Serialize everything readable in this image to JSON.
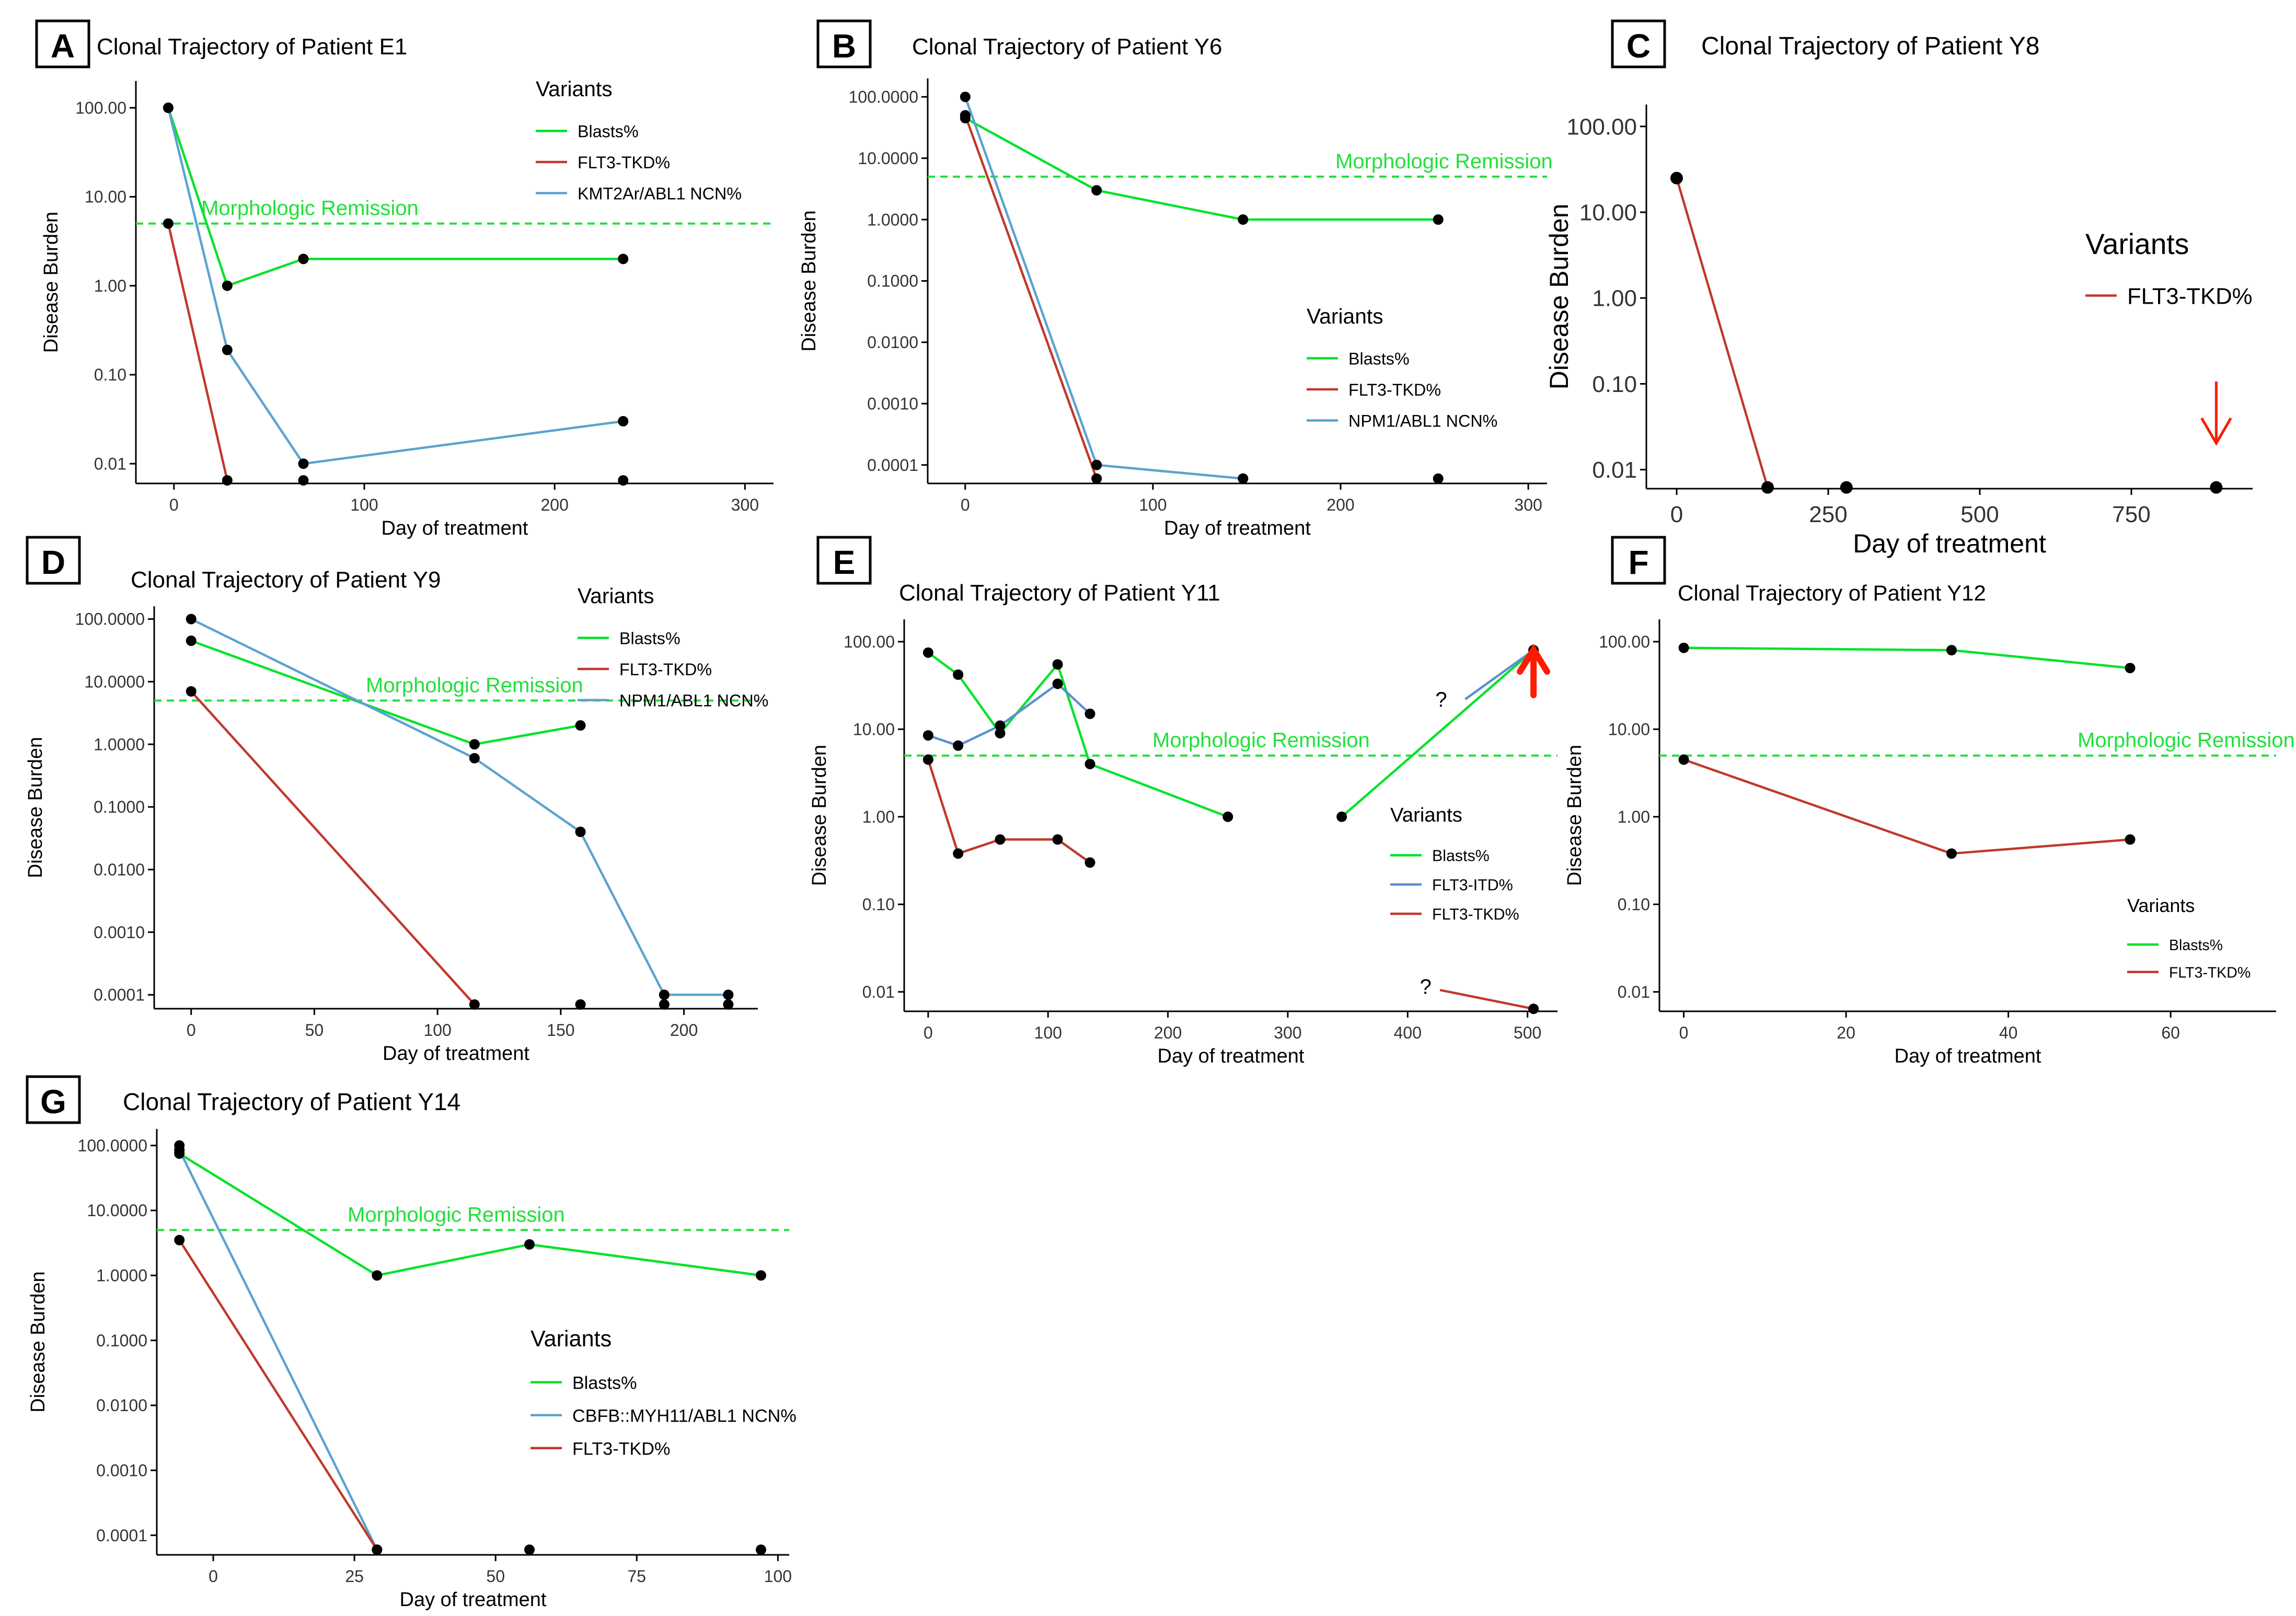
{
  "figure": {
    "x_axis_label": "Day of treatment",
    "y_axis_label": "Disease Burden",
    "remission_label": "Morphologic Remission",
    "legend_title": "Variants",
    "unknown_marker": "?"
  },
  "colors": {
    "blasts": "#00e22a",
    "flt3_tkd": "#c0392b",
    "ncn": "#5ba3cf",
    "flt3_itd": "#5b8fd0",
    "remission": "#22e03a",
    "arrow": "#ff1a00",
    "point": "#000000"
  },
  "chart_data": [
    {
      "panel": "A",
      "type": "line",
      "title": "Clonal Trajectory of Patient E1",
      "xlabel": "Day of treatment",
      "ylabel": "Disease Burden",
      "xlim": [
        -20,
        315
      ],
      "x_ticks": [
        0,
        100,
        200,
        300
      ],
      "y_ticks": [
        100,
        10,
        1,
        0.1,
        0.01
      ],
      "y_tick_labels": [
        "100.00",
        "10.00",
        "1.00",
        "0.10",
        "0.01"
      ],
      "ylim": [
        0.006,
        200
      ],
      "remission_threshold": 5,
      "legend_title": "Variants",
      "series": [
        {
          "name": "Blasts%",
          "color_key": "blasts",
          "x": [
            -3,
            28,
            68,
            236
          ],
          "y": [
            100,
            1,
            2,
            2
          ]
        },
        {
          "name": "FLT3-TKD%",
          "color_key": "flt3_tkd",
          "x": [
            -3,
            28
          ],
          "y": [
            5,
            0.0065
          ]
        },
        {
          "name": "KMT2Ar/ABL1 NCN%",
          "color_key": "ncn",
          "x": [
            -3,
            28,
            68,
            236
          ],
          "y": [
            100,
            0.19,
            0.01,
            0.03
          ]
        }
      ],
      "extra_points": [
        {
          "x": 68,
          "y": 0.0065
        },
        {
          "x": 236,
          "y": 0.0065
        }
      ]
    },
    {
      "panel": "B",
      "type": "line",
      "title": "Clonal Trajectory of Patient Y6",
      "xlabel": "Day of treatment",
      "ylabel": "Disease Burden",
      "xlim": [
        -20,
        310
      ],
      "x_ticks": [
        0,
        100,
        200,
        300
      ],
      "y_ticks": [
        100,
        10,
        1,
        0.1,
        0.01,
        0.001,
        0.0001
      ],
      "y_tick_labels": [
        "100.0000",
        "10.0000",
        "1.0000",
        "0.1000",
        "0.0100",
        "0.0010",
        "0.0001"
      ],
      "ylim": [
        5e-05,
        200
      ],
      "remission_threshold": 5,
      "legend_title": "Variants",
      "series": [
        {
          "name": "Blasts%",
          "color_key": "blasts",
          "x": [
            0,
            70,
            148,
            252
          ],
          "y": [
            45,
            3,
            1,
            1
          ]
        },
        {
          "name": "FLT3-TKD%",
          "color_key": "flt3_tkd",
          "x": [
            0,
            70
          ],
          "y": [
            50,
            6e-05
          ]
        },
        {
          "name": "NPM1/ABL1 NCN%",
          "color_key": "ncn",
          "x": [
            0,
            70,
            148
          ],
          "y": [
            100,
            0.0001,
            6e-05
          ]
        }
      ],
      "extra_points": [
        {
          "x": 148,
          "y": 6e-05
        },
        {
          "x": 252,
          "y": 6e-05
        }
      ]
    },
    {
      "panel": "C",
      "type": "line",
      "title": "Clonal Trajectory of Patient Y8",
      "xlabel": "Day of treatment",
      "ylabel": "Disease Burden",
      "xlim": [
        -50,
        950
      ],
      "x_ticks": [
        0,
        250,
        500,
        750
      ],
      "y_ticks": [
        100,
        10,
        1,
        0.1,
        0.01
      ],
      "y_tick_labels": [
        "100.00",
        "10.00",
        "1.00",
        "0.10",
        "0.01"
      ],
      "ylim": [
        0.006,
        180
      ],
      "legend_title": "Variants",
      "series": [
        {
          "name": "FLT3-TKD%",
          "color_key": "flt3_tkd",
          "x": [
            0,
            150
          ],
          "y": [
            25,
            0.0062
          ]
        }
      ],
      "extra_points": [
        {
          "x": 280,
          "y": 0.0062
        },
        {
          "x": 890,
          "y": 0.0062
        }
      ],
      "annotations": [
        {
          "kind": "arrow-down",
          "x": 890
        }
      ]
    },
    {
      "panel": "D",
      "type": "line",
      "title": "Clonal Trajectory of Patient Y9",
      "xlabel": "Day of treatment",
      "ylabel": "Disease Burden",
      "xlim": [
        -15,
        230
      ],
      "x_ticks": [
        0,
        50,
        100,
        150,
        200
      ],
      "y_ticks": [
        100,
        10,
        1,
        0.1,
        0.01,
        0.001,
        0.0001
      ],
      "y_tick_labels": [
        "100.0000",
        "10.0000",
        "1.0000",
        "0.1000",
        "0.0100",
        "0.0010",
        "0.0001"
      ],
      "ylim": [
        6e-05,
        160
      ],
      "remission_threshold": 5,
      "legend_title": "Variants",
      "series": [
        {
          "name": "Blasts%",
          "color_key": "blasts",
          "x": [
            0,
            115,
            158
          ],
          "y": [
            45,
            1,
            2
          ]
        },
        {
          "name": "FLT3-TKD%",
          "color_key": "flt3_tkd",
          "x": [
            0,
            115
          ],
          "y": [
            7,
            7e-05
          ]
        },
        {
          "name": "NPM1/ABL1 NCN%",
          "color_key": "ncn",
          "x": [
            0,
            115,
            158,
            192,
            218
          ],
          "y": [
            100,
            0.6,
            0.04,
            0.0001,
            0.0001
          ]
        }
      ],
      "extra_points": [
        {
          "x": 158,
          "y": 7e-05
        },
        {
          "x": 192,
          "y": 7e-05
        },
        {
          "x": 218,
          "y": 7e-05
        }
      ]
    },
    {
      "panel": "E",
      "type": "line",
      "title": "Clonal Trajectory of Patient Y11",
      "xlabel": "Day of treatment",
      "ylabel": "Disease Burden",
      "xlim": [
        -20,
        525
      ],
      "x_ticks": [
        0,
        100,
        200,
        300,
        400,
        500
      ],
      "y_ticks": [
        100,
        10,
        1,
        0.1,
        0.01
      ],
      "y_tick_labels": [
        "100.00",
        "10.00",
        "1.00",
        "0.10",
        "0.01"
      ],
      "ylim": [
        0.006,
        180
      ],
      "remission_threshold": 5,
      "legend_title": "Variants",
      "series": [
        {
          "name": "Blasts%",
          "color_key": "blasts",
          "x": [
            0,
            25,
            60,
            108,
            135,
            250,
            null,
            345,
            505
          ],
          "y": [
            75,
            42,
            9,
            55,
            4,
            1,
            null,
            1,
            80
          ]
        },
        {
          "name": "FLT3-ITD%",
          "color_key": "flt3_itd",
          "x": [
            0,
            25,
            60,
            108,
            135,
            null,
            448,
            505
          ],
          "y": [
            8.5,
            6.5,
            11,
            33,
            15,
            null,
            22,
            80
          ]
        },
        {
          "name": "FLT3-TKD%",
          "color_key": "flt3_tkd",
          "x": [
            0,
            25,
            60,
            108,
            135,
            null,
            427,
            505
          ],
          "y": [
            4.5,
            0.38,
            0.55,
            0.55,
            0.3,
            null,
            0.0105,
            0.0064
          ]
        }
      ],
      "extra_points": [],
      "annotations": [
        {
          "kind": "question",
          "x": 428,
          "y": 22
        },
        {
          "kind": "question",
          "x": 415,
          "y": 0.0115
        },
        {
          "kind": "arrow-up",
          "x": 505
        }
      ]
    },
    {
      "panel": "F",
      "type": "line",
      "title": "Clonal Trajectory of Patient Y12",
      "xlabel": "Day of treatment",
      "ylabel": "Disease Burden",
      "xlim": [
        -3,
        73
      ],
      "x_ticks": [
        0,
        20,
        40,
        60
      ],
      "y_ticks": [
        100,
        10,
        1,
        0.1,
        0.01
      ],
      "y_tick_labels": [
        "100.00",
        "10.00",
        "1.00",
        "0.10",
        "0.01"
      ],
      "ylim": [
        0.006,
        180
      ],
      "remission_threshold": 5,
      "legend_title": "Variants",
      "series": [
        {
          "name": "Blasts%",
          "color_key": "blasts",
          "x": [
            0,
            33,
            55
          ],
          "y": [
            85,
            80,
            50
          ]
        },
        {
          "name": "FLT3-TKD%",
          "color_key": "flt3_tkd",
          "x": [
            0,
            33,
            55
          ],
          "y": [
            4.5,
            0.38,
            0.55
          ]
        }
      ],
      "extra_points": []
    },
    {
      "panel": "G",
      "type": "line",
      "title": "Clonal Trajectory of Patient Y14",
      "xlabel": "Day of treatment",
      "ylabel": "Disease Burden",
      "xlim": [
        -10,
        102
      ],
      "x_ticks": [
        0,
        25,
        50,
        75,
        100
      ],
      "y_ticks": [
        100,
        10,
        1,
        0.1,
        0.01,
        0.001,
        0.0001
      ],
      "y_tick_labels": [
        "100.0000",
        "10.0000",
        "1.0000",
        "0.1000",
        "0.0100",
        "0.0010",
        "0.0001"
      ],
      "ylim": [
        5e-05,
        180
      ],
      "remission_threshold": 5,
      "legend_title": "Variants",
      "series": [
        {
          "name": "Blasts%",
          "color_key": "blasts",
          "x": [
            -6,
            29,
            56,
            97
          ],
          "y": [
            75,
            1,
            3,
            1
          ]
        },
        {
          "name": "CBFB::MYH11/ABL1 NCN%",
          "color_key": "ncn",
          "x": [
            -6,
            29
          ],
          "y": [
            85,
            6e-05
          ]
        },
        {
          "name": "FLT3-TKD%",
          "color_key": "flt3_tkd",
          "x": [
            -6,
            29
          ],
          "y": [
            3.5,
            6e-05
          ]
        }
      ],
      "extra_points": [
        {
          "x": -6,
          "y": 100
        },
        {
          "x": 56,
          "y": 6e-05
        },
        {
          "x": 97,
          "y": 6e-05
        }
      ]
    }
  ]
}
